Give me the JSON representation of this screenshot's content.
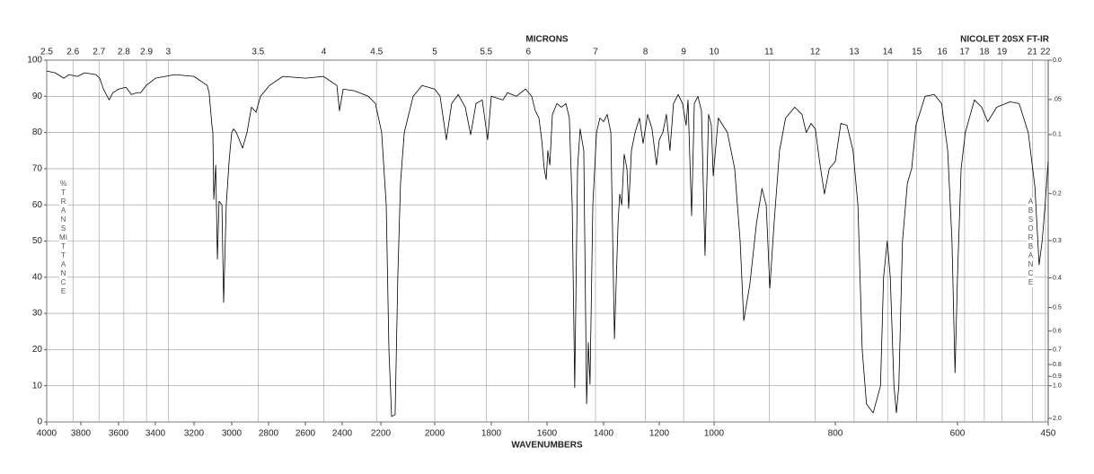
{
  "chart_data": {
    "type": "line",
    "title": "NICOLET 20SX FT-IR",
    "xlabel": "WAVENUMBERS",
    "x2label": "MICRONS",
    "ylabel": "%TRANSMITTANCE",
    "y2label": "ABSORBANCE",
    "color": "#000000",
    "grid": true,
    "xlim": [
      4000,
      450
    ],
    "xticks": [
      4000,
      3800,
      3600,
      3400,
      3200,
      3000,
      2800,
      2600,
      2400,
      2200,
      2000,
      1800,
      1600,
      1400,
      1200,
      1000,
      800,
      600,
      450
    ],
    "x2ticks": [
      2.5,
      2.6,
      2.7,
      2.8,
      2.9,
      3,
      3.5,
      4,
      4.5,
      5,
      5.5,
      6,
      7,
      8,
      9,
      10,
      11,
      12,
      13,
      14,
      15,
      16,
      17,
      18,
      19,
      21,
      22
    ],
    "ylim": [
      0,
      100
    ],
    "yticks": [
      0,
      10,
      20,
      30,
      40,
      50,
      60,
      70,
      80,
      90,
      100
    ],
    "y2ticks": [
      {
        "value": 0,
        "label": "0.0"
      },
      {
        "value": 0.05,
        "label": ".05"
      },
      0.1,
      0.2,
      0.3,
      0.4,
      0.5,
      0.6,
      0.7,
      0.8,
      0.9,
      {
        "value": 1,
        "label": "1.0"
      },
      {
        "value": 2,
        "label": "2.0"
      }
    ],
    "x": [
      4000,
      3950,
      3900,
      3870,
      3820,
      3780,
      3720,
      3700,
      3680,
      3660,
      3650,
      3630,
      3600,
      3560,
      3530,
      3500,
      3480,
      3450,
      3400,
      3300,
      3200,
      3130,
      3120,
      3105,
      3100,
      3095,
      3085,
      3076,
      3067,
      3052,
      3043,
      3029,
      3014,
      3000,
      2990,
      2975,
      2941,
      2917,
      2893,
      2868,
      2844,
      2795,
      2722,
      2600,
      2502,
      2429,
      2415,
      2395,
      2335,
      2265,
      2228,
      2197,
      2180,
      2170,
      2160,
      2147,
      2137,
      2127,
      2113,
      2080,
      2047,
      2000,
      1981,
      1959,
      1940,
      1917,
      1892,
      1873,
      1854,
      1832,
      1813,
      1800,
      1758,
      1742,
      1710,
      1677,
      1655,
      1642,
      1629,
      1619,
      1610,
      1603,
      1597,
      1590,
      1581,
      1565,
      1549,
      1533,
      1521,
      1511,
      1502,
      1492,
      1483,
      1470,
      1460,
      1454,
      1448,
      1438,
      1425,
      1413,
      1400,
      1387,
      1374,
      1361,
      1348,
      1342,
      1335,
      1326,
      1316,
      1310,
      1300,
      1287,
      1271,
      1258,
      1242,
      1226,
      1210,
      1200,
      1187,
      1174,
      1161,
      1148,
      1131,
      1115,
      1102,
      1095,
      1082,
      1072,
      1059,
      1046,
      1033,
      1020,
      1010,
      1003,
      993,
      978,
      966,
      957,
      951,
      941,
      930,
      921,
      914,
      908,
      901,
      892,
      882,
      867,
      855,
      848,
      840,
      833,
      826,
      818,
      810,
      800,
      791,
      781,
      771,
      763,
      756,
      749,
      738,
      726,
      721,
      715,
      710,
      704,
      700,
      696,
      690,
      682,
      675,
      668,
      653,
      638,
      626,
      616,
      609,
      604,
      600,
      594,
      587,
      572,
      560,
      550,
      535,
      513,
      498,
      483,
      472,
      465,
      460,
      456,
      450
    ],
    "values": [
      97,
      96.5,
      95,
      96,
      95.5,
      96.5,
      96,
      95,
      92,
      90,
      89,
      91,
      92,
      92.5,
      90.5,
      91,
      91,
      93,
      95,
      96,
      95.5,
      93,
      91,
      82,
      80,
      61.5,
      71,
      45,
      61,
      60,
      33,
      60,
      72,
      80,
      81,
      80,
      75.7,
      80,
      87,
      85.6,
      90,
      93,
      95.5,
      95,
      95.5,
      93,
      86,
      92,
      91.5,
      90,
      88,
      80,
      60,
      20,
      1.5,
      2,
      40,
      66,
      80,
      90,
      93,
      92,
      90,
      78,
      88,
      90.5,
      87,
      79.4,
      88,
      89,
      78,
      90,
      89,
      91,
      90,
      92,
      90,
      86,
      84,
      78,
      70,
      67,
      75,
      71,
      85,
      88,
      87,
      88,
      84,
      60,
      9.5,
      70,
      81,
      75,
      5,
      22,
      10.4,
      60,
      80,
      84,
      83,
      85,
      80,
      23,
      55,
      63,
      60,
      74,
      70,
      59,
      75,
      80,
      84,
      77,
      85,
      81,
      71,
      78,
      80,
      85,
      75,
      88,
      90.5,
      88,
      82,
      89,
      57,
      88,
      90,
      86,
      46,
      85,
      82,
      68,
      84,
      80,
      70,
      50,
      28,
      38,
      55,
      64.5,
      60,
      37,
      55,
      75,
      84,
      87,
      85,
      80,
      82.5,
      81,
      72,
      63,
      70,
      72,
      82.5,
      82,
      75,
      60,
      20,
      5,
      2.5,
      10,
      40,
      50,
      40,
      10,
      2.5,
      10,
      50,
      66,
      70,
      82,
      90,
      90.5,
      88,
      75,
      50,
      13.6,
      40,
      70,
      80,
      89,
      87,
      83,
      87,
      88.5,
      88,
      80,
      65,
      43.4,
      50,
      58,
      72
    ]
  }
}
